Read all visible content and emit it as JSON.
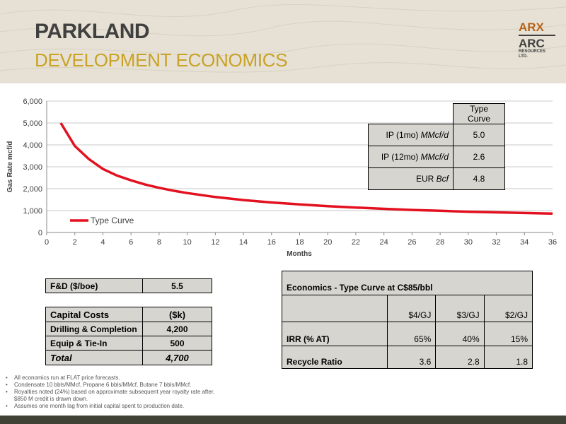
{
  "header": {
    "title": "PARKLAND",
    "subtitle": "DEVELOPMENT ECONOMICS",
    "logo": {
      "arx": "ARX",
      "arc": "ARC",
      "sub1": "RESOURCES",
      "sub2": "LTD."
    }
  },
  "chart_data": {
    "type": "line",
    "title": "",
    "xlabel": "Months",
    "ylabel": "Gas Rate mcf/d",
    "xlim": [
      0,
      36
    ],
    "ylim": [
      0,
      6000
    ],
    "x_ticks": [
      0,
      2,
      4,
      6,
      8,
      10,
      12,
      14,
      16,
      18,
      20,
      22,
      24,
      26,
      28,
      30,
      32,
      34,
      36
    ],
    "y_ticks": [
      0,
      1000,
      2000,
      3000,
      4000,
      5000,
      6000
    ],
    "y_tick_labels": [
      "0",
      "1,000",
      "2,000",
      "3,000",
      "4,000",
      "5,000",
      "6,000"
    ],
    "grid": "horizontal",
    "legend": "bottom-left",
    "series": [
      {
        "name": "Type Curve",
        "color": "#e3101f",
        "x": [
          1,
          2,
          3,
          4,
          5,
          6,
          7,
          8,
          9,
          10,
          12,
          14,
          16,
          18,
          20,
          22,
          24,
          26,
          28,
          30,
          32,
          34,
          36
        ],
        "y": [
          5000,
          3950,
          3350,
          2900,
          2600,
          2380,
          2190,
          2040,
          1910,
          1800,
          1620,
          1480,
          1370,
          1280,
          1200,
          1140,
          1080,
          1030,
          990,
          950,
          920,
          890,
          860
        ]
      }
    ]
  },
  "curve_table": {
    "header": "Type Curve",
    "rows": [
      {
        "label": "IP (1mo) ",
        "unit": "MMcf/d",
        "value": "5.0"
      },
      {
        "label": "IP (12mo) ",
        "unit": "MMcf/d",
        "value": "2.6"
      },
      {
        "label": "EUR ",
        "unit": "Bcf",
        "value": "4.8"
      }
    ]
  },
  "fd_table": {
    "label": "F&D ($/boe)",
    "value": "5.5"
  },
  "capital_table": {
    "header_label": "Capital Costs",
    "header_value": "($k)",
    "rows": [
      {
        "label": "Drilling & Completion",
        "value": "4,200"
      },
      {
        "label": "Equip & Tie-In",
        "value": "500"
      }
    ],
    "total_label": "Total",
    "total_value": "4,700"
  },
  "economics_table": {
    "title": "Economics - Type Curve at C$85/bbl",
    "columns": [
      "$4/GJ",
      "$3/GJ",
      "$2/GJ"
    ],
    "rows": [
      {
        "label": "IRR (% AT)",
        "values": [
          "65%",
          "40%",
          "15%"
        ]
      },
      {
        "label": "Recycle Ratio",
        "values": [
          "3.6",
          "2.8",
          "1.8"
        ]
      }
    ]
  },
  "notes": [
    "All economics run at FLAT price forecasts.",
    "Condensate 10 bbls/MMcf,  Propane 6 bbls/MMcf, Butane 7 bbls/MMcf.",
    "Royalties noted (24%) based on approximate subsequent year royalty rate after.",
    "$850 M credit is drawn down.",
    "Assumes one month lag from initial capital spent to production date."
  ]
}
